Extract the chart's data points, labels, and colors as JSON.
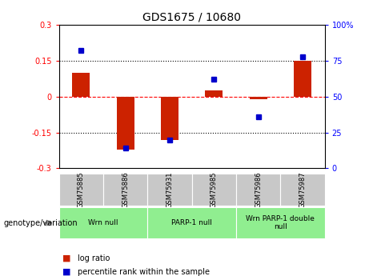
{
  "title": "GDS1675 / 10680",
  "samples": [
    "GSM75885",
    "GSM75886",
    "GSM75931",
    "GSM75985",
    "GSM75986",
    "GSM75987"
  ],
  "log_ratio": [
    0.1,
    -0.22,
    -0.18,
    0.025,
    -0.01,
    0.15
  ],
  "percentile_rank": [
    82,
    14,
    20,
    62,
    36,
    78
  ],
  "left_ylim": [
    -0.3,
    0.3
  ],
  "right_ylim": [
    0,
    100
  ],
  "left_yticks": [
    -0.3,
    -0.15,
    0.0,
    0.15,
    0.3
  ],
  "right_yticks": [
    0,
    25,
    50,
    75,
    100
  ],
  "left_ytick_labels": [
    "-0.3",
    "-0.15",
    "0",
    "0.15",
    "0.3"
  ],
  "right_ytick_labels": [
    "0",
    "25",
    "50",
    "75",
    "100%"
  ],
  "hlines": [
    0.15,
    0.0,
    -0.15
  ],
  "hline_styles": [
    "dotted",
    "dashed_red",
    "dotted"
  ],
  "groups": [
    {
      "label": "Wrn null",
      "start": 0,
      "end": 2,
      "color": "#90EE90"
    },
    {
      "label": "PARP-1 null",
      "start": 2,
      "end": 4,
      "color": "#90EE90"
    },
    {
      "label": "Wrn PARP-1 double\nnull",
      "start": 4,
      "end": 6,
      "color": "#90EE90"
    }
  ],
  "bar_color": "#CC2200",
  "dot_color": "#0000CC",
  "bar_width": 0.4,
  "legend_entries": [
    "log ratio",
    "percentile rank within the sample"
  ],
  "legend_colors": [
    "#CC2200",
    "#0000CC"
  ],
  "genotype_label": "genotype/variation",
  "background_color": "#ffffff",
  "sample_box_color": "#C8C8C8"
}
